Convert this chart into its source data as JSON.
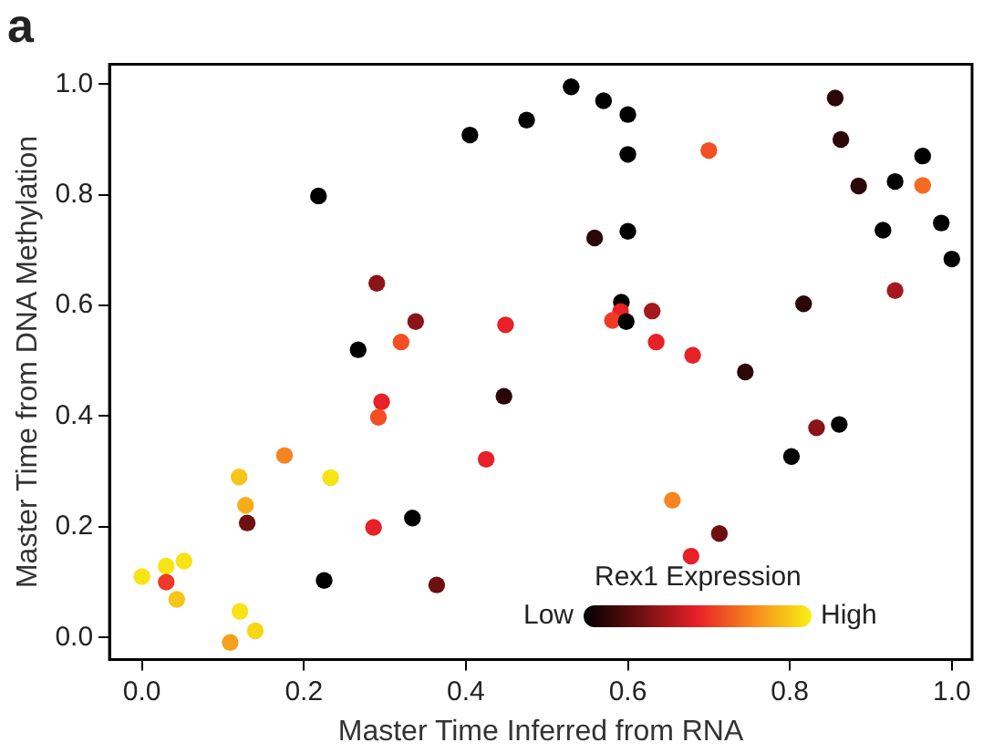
{
  "chart_data": {
    "type": "scatter",
    "title": "a",
    "xlabel": "Master Time Inferred from RNA",
    "ylabel": "Master Time from DNA Methylation",
    "clabel": "Rex1 Expression",
    "annotations": [
      "Low",
      "High"
    ],
    "xlim": [
      -0.04,
      1.025
    ],
    "ylim": [
      -0.04,
      1.036
    ],
    "xticks": [
      {
        "value": 0,
        "label": "0.0"
      },
      0.2,
      0.4,
      0.6,
      0.8,
      {
        "value": 1,
        "label": "1.0"
      }
    ],
    "yticks": [
      {
        "value": 0,
        "label": "0.0"
      },
      0.2,
      0.4,
      0.6,
      0.8,
      {
        "value": 1,
        "label": "1.0"
      }
    ],
    "grid": false,
    "legend": false,
    "marker": "circle",
    "x": [
      0.53,
      0.475,
      0.57,
      0.6,
      0.6,
      0.7,
      0.856,
      0.863,
      0.964,
      0.93,
      0.964,
      0.885,
      0.987,
      0.915,
      1.0,
      0.6,
      0.559,
      0.93,
      0.817,
      0.592,
      0.591,
      0.581,
      0.598,
      0.63,
      0.449,
      0.635,
      0.68,
      0.745,
      0.218,
      0.405,
      0.29,
      0.338,
      0.32,
      0.267,
      0.447,
      0.296,
      0.292,
      0.425,
      0.176,
      0.12,
      0.233,
      0.128,
      0.13,
      0.334,
      0.286,
      0.0,
      0.03,
      0.052,
      0.03,
      0.043,
      0.225,
      0.364,
      0.121,
      0.14,
      0.109,
      0.833,
      0.861,
      0.802,
      0.655,
      0.713,
      0.678
    ],
    "values": [
      0.995,
      0.935,
      0.97,
      0.945,
      0.873,
      0.88,
      0.975,
      0.9,
      0.87,
      0.824,
      0.817,
      0.816,
      0.749,
      0.736,
      0.684,
      0.734,
      0.722,
      0.627,
      0.603,
      0.606,
      0.589,
      0.573,
      0.571,
      0.59,
      0.565,
      0.534,
      0.51,
      0.48,
      0.798,
      0.908,
      0.64,
      0.571,
      0.534,
      0.52,
      0.436,
      0.426,
      0.398,
      0.322,
      0.329,
      0.29,
      0.289,
      0.239,
      0.207,
      0.216,
      0.199,
      0.11,
      0.129,
      0.138,
      0.1,
      0.069,
      0.103,
      0.095,
      0.047,
      0.012,
      -0.009,
      0.379,
      0.385,
      0.327,
      0.248,
      0.188,
      0.147
    ],
    "colors": [
      "#000000",
      "#000000",
      "#000000",
      "#000000",
      "#000000",
      "#f34e24",
      "#2c0707",
      "#2c0707",
      "#000000",
      "#000000",
      "#f56a22",
      "#2c0707",
      "#000000",
      "#000000",
      "#000000",
      "#000000",
      "#2c0707",
      "#a5181c",
      "#2c0707",
      "#000000",
      "#e82028",
      "#ee3a26",
      "#000000",
      "#a5181c",
      "#e82028",
      "#e82028",
      "#e82028",
      "#2c0707",
      "#000000",
      "#000000",
      "#8a1418",
      "#8a1418",
      "#f34e24",
      "#000000",
      "#2c0707",
      "#e82028",
      "#f34e24",
      "#e82028",
      "#f68420",
      "#f7c418",
      "#f8e314",
      "#f7ad1a",
      "#6e1010",
      "#000000",
      "#e82028",
      "#f8e314",
      "#f8e314",
      "#f8e314",
      "#ee3a26",
      "#f7c418",
      "#000000",
      "#6e1010",
      "#f8e314",
      "#f7d616",
      "#f7a01c",
      "#8a1418",
      "#000000",
      "#000000",
      "#f68420",
      "#6e1010",
      "#e82028"
    ]
  }
}
